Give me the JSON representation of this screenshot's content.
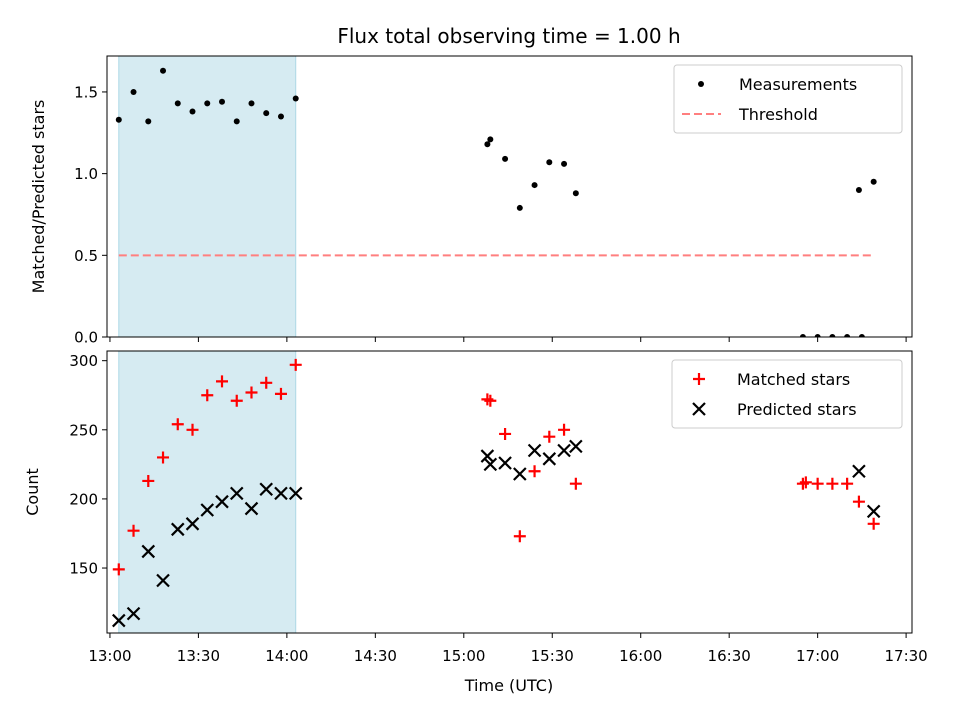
{
  "chart_data": {
    "title": "Flux total observing time = 1.00 h",
    "xlabel": "Time (UTC)",
    "x_ticks": [
      "13:00",
      "13:30",
      "14:00",
      "14:30",
      "15:00",
      "15:30",
      "16:00",
      "16:30",
      "17:00",
      "17:30"
    ],
    "xlim": [
      "12:59",
      "17:32"
    ],
    "shaded_interval": [
      "13:03",
      "14:03"
    ],
    "colors": {
      "shade": "#add8e6",
      "matched": "#ff0000",
      "predicted": "#000000",
      "threshold": "#ff7f7f",
      "measurement": "#000000"
    },
    "panels": [
      {
        "type": "scatter",
        "ylabel": "Matched/Predicted stars",
        "ylim": [
          0,
          1.72
        ],
        "y_ticks": [
          "0.0",
          "0.5",
          "1.0",
          "1.5"
        ],
        "y_tick_values": [
          0,
          0.5,
          1.0,
          1.5
        ],
        "legend_position": "upper right",
        "series": [
          {
            "name": "Measurements",
            "marker": "dot",
            "points": [
              [
                "13:03",
                1.33
              ],
              [
                "13:08",
                1.5
              ],
              [
                "13:13",
                1.32
              ],
              [
                "13:18",
                1.63
              ],
              [
                "13:23",
                1.43
              ],
              [
                "13:28",
                1.38
              ],
              [
                "13:33",
                1.43
              ],
              [
                "13:38",
                1.44
              ],
              [
                "13:43",
                1.32
              ],
              [
                "13:48",
                1.43
              ],
              [
                "13:53",
                1.37
              ],
              [
                "13:58",
                1.35
              ],
              [
                "14:03",
                1.46
              ],
              [
                "15:08",
                1.18
              ],
              [
                "15:09",
                1.21
              ],
              [
                "15:14",
                1.09
              ],
              [
                "15:19",
                0.79
              ],
              [
                "15:24",
                0.93
              ],
              [
                "15:29",
                1.07
              ],
              [
                "15:34",
                1.06
              ],
              [
                "15:38",
                0.88
              ],
              [
                "16:55",
                0.0
              ],
              [
                "17:00",
                0.0
              ],
              [
                "17:05",
                0.0
              ],
              [
                "17:10",
                0.0
              ],
              [
                "17:15",
                0.0
              ],
              [
                "17:14",
                0.9
              ],
              [
                "17:19",
                0.95
              ]
            ]
          },
          {
            "name": "Threshold",
            "marker": "dashed-line",
            "points": [
              [
                "13:03",
                0.5
              ],
              [
                "17:19",
                0.5
              ]
            ]
          }
        ]
      },
      {
        "type": "scatter",
        "ylabel": "Count",
        "ylim": [
          103,
          307
        ],
        "y_ticks": [
          "150",
          "200",
          "250",
          "300"
        ],
        "y_tick_values": [
          150,
          200,
          250,
          300
        ],
        "legend_position": "upper right",
        "series": [
          {
            "name": "Matched stars",
            "marker": "plus",
            "points": [
              [
                "13:03",
                149
              ],
              [
                "13:08",
                177
              ],
              [
                "13:13",
                213
              ],
              [
                "13:18",
                230
              ],
              [
                "13:23",
                254
              ],
              [
                "13:28",
                250
              ],
              [
                "13:33",
                275
              ],
              [
                "13:38",
                285
              ],
              [
                "13:43",
                271
              ],
              [
                "13:48",
                277
              ],
              [
                "13:53",
                284
              ],
              [
                "13:58",
                276
              ],
              [
                "14:03",
                297
              ],
              [
                "15:08",
                272
              ],
              [
                "15:09",
                271
              ],
              [
                "15:14",
                247
              ],
              [
                "15:19",
                173
              ],
              [
                "15:24",
                220
              ],
              [
                "15:29",
                245
              ],
              [
                "15:34",
                250
              ],
              [
                "15:38",
                211
              ],
              [
                "16:55",
                211
              ],
              [
                "16:56",
                212
              ],
              [
                "17:00",
                211
              ],
              [
                "17:05",
                211
              ],
              [
                "17:10",
                211
              ],
              [
                "17:14",
                198
              ],
              [
                "17:19",
                182
              ]
            ]
          },
          {
            "name": "Predicted stars",
            "marker": "x",
            "points": [
              [
                "13:03",
                112
              ],
              [
                "13:08",
                117
              ],
              [
                "13:13",
                162
              ],
              [
                "13:18",
                141
              ],
              [
                "13:23",
                178
              ],
              [
                "13:28",
                182
              ],
              [
                "13:33",
                192
              ],
              [
                "13:38",
                198
              ],
              [
                "13:43",
                204
              ],
              [
                "13:48",
                193
              ],
              [
                "13:53",
                207
              ],
              [
                "13:58",
                204
              ],
              [
                "14:03",
                204
              ],
              [
                "15:08",
                231
              ],
              [
                "15:09",
                225
              ],
              [
                "15:14",
                226
              ],
              [
                "15:19",
                218
              ],
              [
                "15:24",
                235
              ],
              [
                "15:29",
                229
              ],
              [
                "15:34",
                235
              ],
              [
                "15:38",
                238
              ],
              [
                "17:14",
                220
              ],
              [
                "17:19",
                191
              ]
            ]
          }
        ]
      }
    ]
  }
}
